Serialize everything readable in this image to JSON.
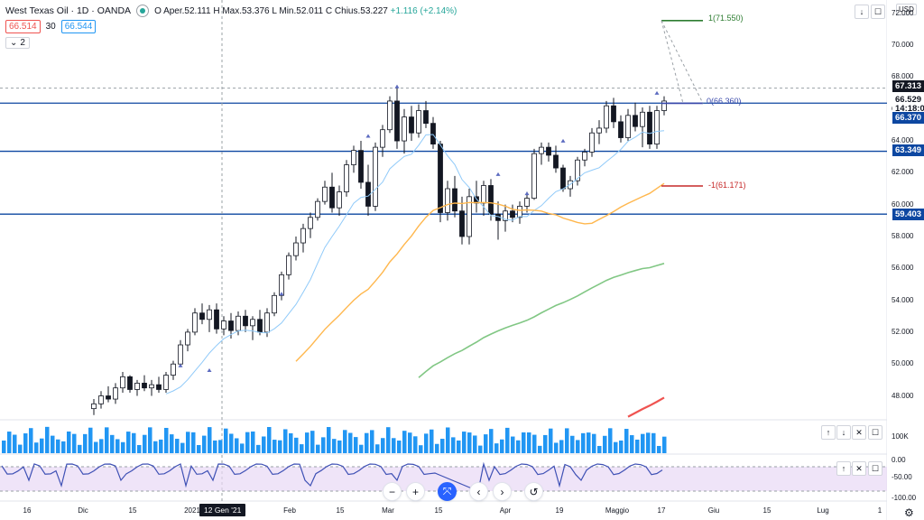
{
  "header": {
    "title": "West Texas Oil · 1D · OANDA",
    "ohlc": {
      "open_label": "O",
      "open_text": "Aper.52.111",
      "high_label": "H",
      "high_text": "Max.53.376",
      "low_label": "L",
      "low_text": "Min.52.011",
      "close_label": "C",
      "close_text": "Chius.53.227",
      "change_text": "+1.116 (+2.14%)"
    },
    "sell_price": "66.514",
    "spread": "30",
    "buy_price": "66.544",
    "indicator_count": "2"
  },
  "currency": "USD",
  "price_axis": {
    "labels": [
      "72.000",
      "70.000",
      "68.000",
      "66.000",
      "64.000",
      "62.000",
      "60.000",
      "58.000",
      "56.000",
      "54.000",
      "52.000",
      "50.000",
      "48.000"
    ],
    "tags": [
      {
        "value": "67.313",
        "color": "#131722",
        "text_color": "#ffffff"
      },
      {
        "value": "66.529",
        "color": "#ffffff",
        "text_color": "#131722"
      },
      {
        "value": "14:18:00",
        "color": "#ffffff",
        "text_color": "#131722"
      },
      {
        "value": "66.370",
        "color": "#0d47a1",
        "text_color": "#ffffff"
      },
      {
        "value": "63.349",
        "color": "#0d47a1",
        "text_color": "#ffffff"
      },
      {
        "value": "59.403",
        "color": "#0d47a1",
        "text_color": "#ffffff"
      }
    ]
  },
  "volume_axis": {
    "label": "100K"
  },
  "oscillator_axis": {
    "labels": [
      "0.00",
      "-50.00",
      "-100.00"
    ]
  },
  "time_axis": {
    "labels": [
      "16",
      "Dic",
      "15",
      "2021",
      "18",
      "Feb",
      "15",
      "Mar",
      "15",
      "Apr",
      "19",
      "Maggio",
      "17",
      "Giu",
      "15",
      "Lug",
      "1"
    ],
    "crosshair": "12 Gen '21"
  },
  "fibonacci": {
    "level_1": "1(71.550)",
    "level_0": "0(66.360)",
    "level_m1": "-1(61.171)"
  },
  "colors": {
    "up": "#ffffff",
    "down": "#131722",
    "ma20": "#90caf9",
    "ma50": "#ffb74d",
    "ma100": "#81c784",
    "ma200": "#ef5350",
    "hline": "#0d47a1",
    "volume": "#2196f3",
    "osc": "#3f51b5",
    "osc_band": "#e8d8f5"
  },
  "toolbar": {
    "zoom_out": "−",
    "zoom_in": "+",
    "reset": "⤧",
    "scroll_left": "‹",
    "scroll_right": "›",
    "refresh": "↺"
  },
  "pane_buttons": {
    "up": "↑",
    "down": "↓",
    "close": "✕",
    "maximize": "☐"
  },
  "chart_data": {
    "type": "candlestick",
    "ylim": [
      46.5,
      72.5
    ],
    "hlines": [
      66.37,
      63.349,
      59.403
    ],
    "fib_levels": [
      71.55,
      66.36,
      61.171
    ],
    "candles": [
      [
        47.2,
        47.8,
        46.8,
        47.5
      ],
      [
        47.5,
        48.3,
        47.2,
        48.0
      ],
      [
        48.0,
        48.6,
        47.6,
        47.8
      ],
      [
        47.8,
        48.8,
        47.5,
        48.5
      ],
      [
        48.5,
        49.5,
        48.2,
        49.2
      ],
      [
        49.2,
        49.3,
        48.2,
        48.4
      ],
      [
        48.4,
        49.0,
        48.0,
        48.8
      ],
      [
        48.8,
        49.3,
        48.3,
        48.5
      ],
      [
        48.5,
        49.0,
        48.0,
        48.7
      ],
      [
        48.7,
        49.2,
        48.2,
        48.4
      ],
      [
        48.4,
        49.5,
        48.2,
        49.3
      ],
      [
        49.3,
        50.2,
        49.0,
        50.0
      ],
      [
        50.0,
        51.5,
        49.8,
        51.2
      ],
      [
        51.2,
        52.2,
        50.8,
        52.0
      ],
      [
        52.0,
        53.5,
        51.8,
        53.2
      ],
      [
        53.2,
        53.8,
        52.5,
        52.8
      ],
      [
        52.8,
        53.7,
        52.0,
        53.4
      ],
      [
        53.4,
        53.8,
        51.9,
        52.2
      ],
      [
        52.2,
        53.0,
        51.8,
        52.7
      ],
      [
        52.7,
        53.2,
        51.6,
        52.1
      ],
      [
        52.1,
        53.3,
        51.8,
        53.0
      ],
      [
        53.0,
        53.4,
        52.0,
        52.4
      ],
      [
        52.4,
        53.0,
        51.5,
        52.8
      ],
      [
        52.8,
        53.4,
        51.8,
        52.0
      ],
      [
        52.0,
        53.5,
        51.7,
        53.2
      ],
      [
        53.2,
        54.5,
        53.0,
        54.3
      ],
      [
        54.3,
        55.8,
        54.0,
        55.6
      ],
      [
        55.6,
        57.0,
        55.3,
        56.8
      ],
      [
        56.8,
        58.0,
        56.5,
        57.6
      ],
      [
        57.6,
        58.8,
        57.0,
        58.5
      ],
      [
        58.5,
        59.5,
        57.9,
        59.2
      ],
      [
        59.2,
        60.4,
        59.0,
        60.2
      ],
      [
        60.2,
        61.5,
        60.0,
        61.1
      ],
      [
        61.1,
        62.0,
        59.5,
        59.8
      ],
      [
        59.8,
        61.2,
        59.3,
        60.8
      ],
      [
        60.8,
        62.8,
        60.5,
        62.5
      ],
      [
        62.5,
        63.7,
        62.0,
        63.4
      ],
      [
        63.4,
        64.0,
        61.0,
        61.4
      ],
      [
        61.4,
        62.5,
        59.3,
        59.9
      ],
      [
        59.9,
        63.9,
        59.6,
        63.6
      ],
      [
        63.6,
        65.0,
        63.0,
        64.7
      ],
      [
        64.7,
        66.8,
        64.5,
        66.5
      ],
      [
        66.5,
        67.5,
        63.5,
        64.0
      ],
      [
        64.0,
        66.0,
        63.2,
        65.5
      ],
      [
        65.5,
        66.2,
        64.0,
        64.5
      ],
      [
        64.5,
        66.3,
        64.2,
        65.9
      ],
      [
        65.9,
        66.5,
        64.8,
        65.1
      ],
      [
        65.1,
        65.5,
        63.5,
        63.8
      ],
      [
        63.8,
        64.0,
        58.9,
        59.5
      ],
      [
        59.5,
        61.5,
        59.0,
        61.0
      ],
      [
        61.0,
        61.8,
        59.2,
        59.6
      ],
      [
        59.6,
        60.5,
        57.5,
        58.0
      ],
      [
        58.0,
        61.0,
        57.5,
        60.5
      ],
      [
        60.5,
        61.5,
        59.5,
        60.1
      ],
      [
        60.1,
        61.5,
        59.3,
        61.2
      ],
      [
        61.2,
        61.6,
        59.0,
        59.4
      ],
      [
        59.4,
        60.2,
        57.8,
        59.0
      ],
      [
        59.0,
        60.0,
        58.3,
        59.6
      ],
      [
        59.6,
        60.0,
        58.9,
        59.2
      ],
      [
        59.2,
        60.2,
        58.8,
        59.9
      ],
      [
        59.9,
        60.8,
        59.5,
        60.4
      ],
      [
        60.4,
        63.5,
        60.3,
        63.2
      ],
      [
        63.2,
        63.9,
        62.5,
        63.6
      ],
      [
        63.6,
        63.9,
        62.7,
        63.1
      ],
      [
        63.1,
        63.7,
        62.0,
        62.3
      ],
      [
        62.3,
        62.5,
        60.8,
        61.0
      ],
      [
        61.0,
        61.8,
        60.5,
        61.5
      ],
      [
        61.5,
        63.0,
        61.2,
        62.8
      ],
      [
        62.8,
        63.5,
        62.4,
        63.3
      ],
      [
        63.3,
        64.8,
        63.0,
        64.5
      ],
      [
        64.5,
        65.3,
        63.8,
        64.8
      ],
      [
        64.8,
        66.5,
        64.5,
        66.2
      ],
      [
        66.2,
        66.7,
        64.8,
        65.2
      ],
      [
        65.2,
        65.6,
        63.9,
        64.2
      ],
      [
        64.2,
        66.0,
        64.0,
        65.6
      ],
      [
        65.6,
        66.4,
        64.6,
        64.9
      ],
      [
        64.9,
        66.1,
        63.6,
        65.8
      ],
      [
        65.8,
        66.2,
        63.5,
        63.8
      ],
      [
        63.8,
        66.2,
        63.5,
        65.9
      ],
      [
        65.9,
        66.8,
        65.6,
        66.5
      ]
    ]
  }
}
